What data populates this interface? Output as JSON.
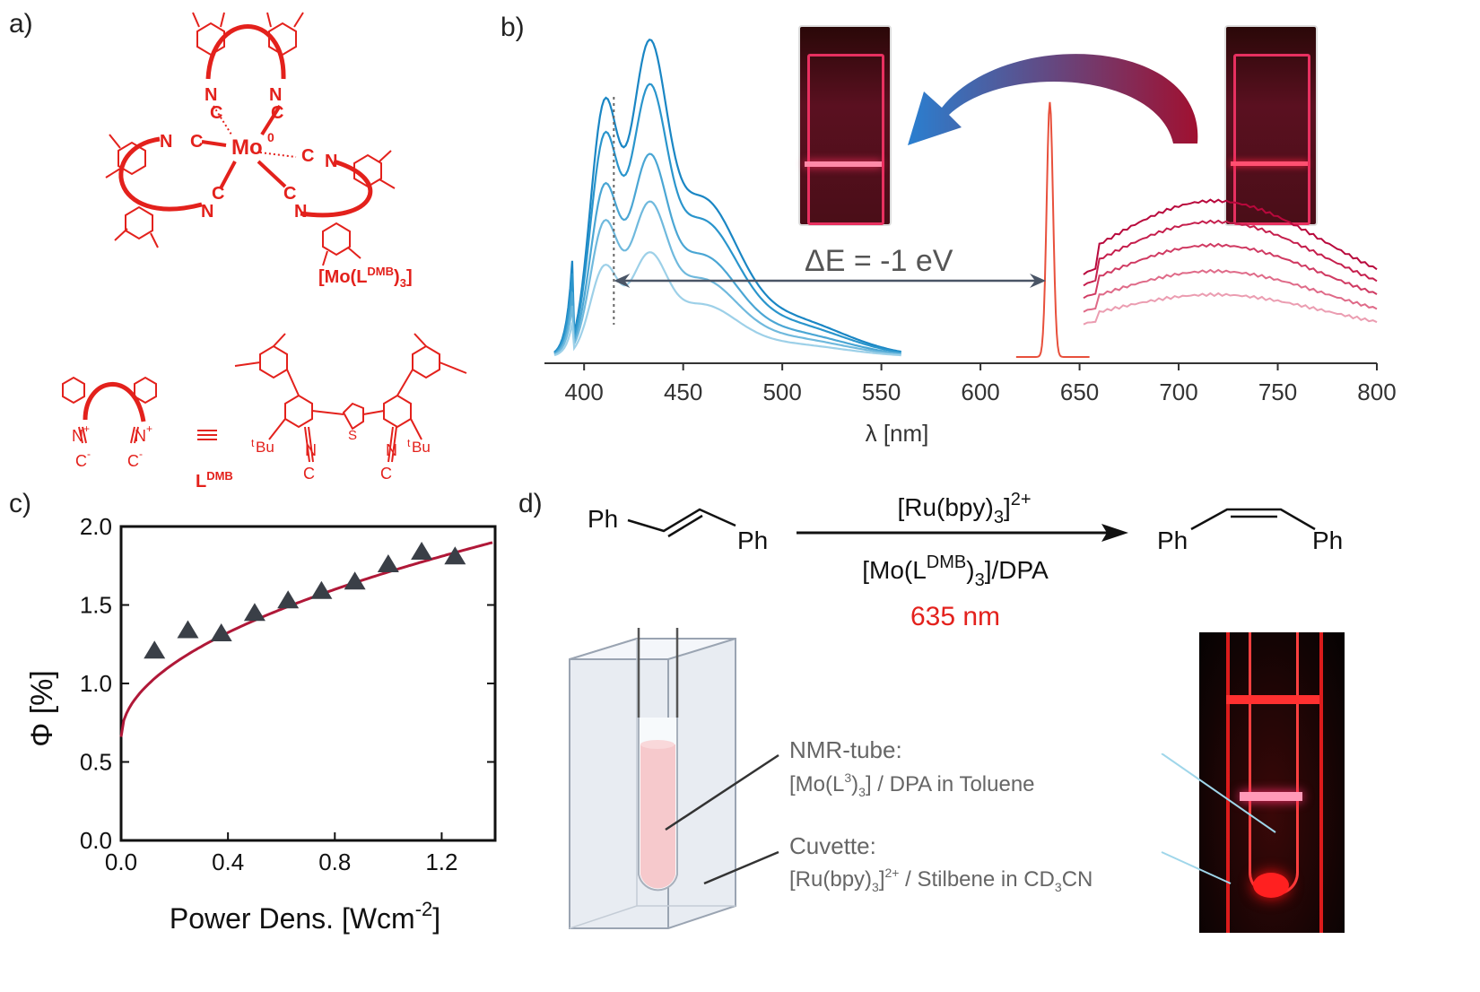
{
  "panels": {
    "a": {
      "label": "a)",
      "metal": "Mo",
      "oxidation": "0",
      "complex_prefix": "[Mo(L",
      "complex_sup": "DMB",
      "complex_suffix": ")",
      "complex_sub": "3",
      "complex_close": "]",
      "ligand_name": "L",
      "ligand_sup": "DMB",
      "iso_N": "N",
      "iso_C": "C",
      "tBu_sup": "t",
      "tBu": "Bu",
      "S": "S",
      "plus": "+",
      "minus": "-",
      "equiv": "≡"
    },
    "b": {
      "label": "b)",
      "delta_E": "ΔE = -1 eV",
      "xlabel": "λ  [nm]"
    },
    "c": {
      "label": "c)",
      "ylabel": "Φ [%]",
      "xlabel_main": "Power Dens. [Wcm",
      "xlabel_sup": "-2",
      "xlabel_close": "]"
    },
    "d": {
      "label": "d)",
      "reactant_left": "Ph",
      "reactant_right": "Ph",
      "product_left": "Ph",
      "product_right": "Ph",
      "catalyst_main": "[Ru(bpy)",
      "catalyst_sub": "3",
      "catalyst_close": "]",
      "catalyst_sup": "2+",
      "annihilator_main": "[Mo(L",
      "annihilator_sup": "DMB",
      "annihilator_close": ")",
      "annihilator_sub": "3",
      "annihilator_tail": "]/DPA",
      "wavelength": "635 nm",
      "nmr_title": "NMR-tube:",
      "nmr_l1": "[Mo(L",
      "nmr_sup": "3",
      "nmr_l2": ")",
      "nmr_sub": "3",
      "nmr_l3": "] / DPA in Toluene",
      "cuv_title": "Cuvette:",
      "cuv_l1": "[Ru(bpy)",
      "cuv_sub": "3",
      "cuv_l2": "]",
      "cuv_sup": "2+",
      "cuv_l3": " / Stilbene in CD",
      "cuv_sub2": "3",
      "cuv_l4": "CN"
    }
  },
  "colors": {
    "red": "#e3211c",
    "blue": "#1a8fc8",
    "crimson": "#c4104a",
    "laser": "#e8503c",
    "marker": "#3a3f47"
  },
  "chart_data": [
    {
      "type": "line",
      "panel": "b",
      "xlabel": "λ  [nm]",
      "ylabel": "",
      "xlim": [
        380,
        800
      ],
      "xticks": [
        400,
        450,
        500,
        550,
        600,
        650,
        700,
        750,
        800
      ],
      "series": [
        {
          "group": "upconverted emission",
          "color": "#1a86c4",
          "peak400": 0.92,
          "peak430": 1.0
        },
        {
          "group": "upconverted emission",
          "color": "#2a95cc",
          "peak400": 0.8,
          "peak430": 0.86
        },
        {
          "group": "upconverted emission",
          "color": "#4aa6d4",
          "peak400": 0.62,
          "peak430": 0.64
        },
        {
          "group": "upconverted emission",
          "color": "#6fb9dd",
          "peak400": 0.49,
          "peak430": 0.49
        },
        {
          "group": "upconverted emission",
          "color": "#9dd0e8",
          "peak400": 0.33,
          "peak430": 0.33
        },
        {
          "group": "laser",
          "color": "#e8503c",
          "peak_nm": 635
        },
        {
          "group": "sensitizer emission",
          "color": "#b8083c",
          "peak": 0.6
        },
        {
          "group": "sensitizer emission",
          "color": "#c51e4c",
          "peak": 0.52
        },
        {
          "group": "sensitizer emission",
          "color": "#d03a62",
          "peak": 0.43
        },
        {
          "group": "sensitizer emission",
          "color": "#df6a88",
          "peak": 0.33
        },
        {
          "group": "sensitizer emission",
          "color": "#eb9db1",
          "peak": 0.24
        }
      ],
      "vline": 415,
      "arrow_from": 415,
      "arrow_to": 633
    },
    {
      "type": "scatter",
      "panel": "c",
      "xlim": [
        0,
        1.4
      ],
      "ylim": [
        0,
        2.0
      ],
      "xticks": [
        0.0,
        0.4,
        0.8,
        1.2
      ],
      "xtick_labels": [
        "0.0",
        "0.4",
        "0.8",
        "1.2"
      ],
      "yticks": [
        0.0,
        0.5,
        1.0,
        1.5,
        2.0
      ],
      "ytick_labels": [
        "0.0",
        "0.5",
        "1.0",
        "1.5",
        "2.0"
      ],
      "x": [
        0.125,
        0.25,
        0.375,
        0.5,
        0.625,
        0.75,
        0.875,
        1.0,
        1.125,
        1.25
      ],
      "y": [
        1.21,
        1.34,
        1.32,
        1.45,
        1.53,
        1.59,
        1.65,
        1.76,
        1.84,
        1.81
      ],
      "fit": {
        "a": 0.66,
        "b": 1.05,
        "n": 0.5
      }
    }
  ]
}
